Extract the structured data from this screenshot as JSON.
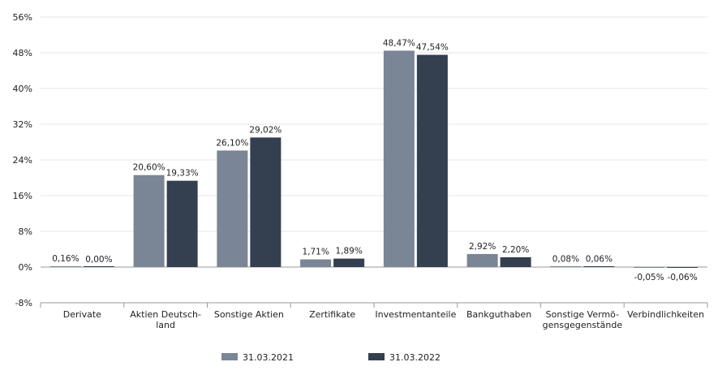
{
  "chart_data": {
    "type": "bar",
    "categories": [
      [
        "Derivate"
      ],
      [
        "Aktien Deutsch-",
        "land"
      ],
      [
        "Sonstige Aktien"
      ],
      [
        "Zertifikate"
      ],
      [
        "Investmentanteile"
      ],
      [
        "Bankguthaben"
      ],
      [
        "Sonstige Vermö-",
        "gensgegenstände"
      ],
      [
        "Verbindlichkeiten"
      ]
    ],
    "series": [
      {
        "name": "31.03.2021",
        "color": "#7a8595",
        "values": [
          0.16,
          20.6,
          26.1,
          1.71,
          48.47,
          2.92,
          0.08,
          -0.05
        ],
        "labels": [
          "0,16%",
          "20,60%",
          "26,10%",
          "1,71%",
          "48,47%",
          "2,92%",
          "0,08%",
          "-0,05%"
        ]
      },
      {
        "name": "31.03.2022",
        "color": "#343f4f",
        "values": [
          0.0,
          19.33,
          29.02,
          1.89,
          47.54,
          2.2,
          0.06,
          -0.06
        ],
        "labels": [
          "0,00%",
          "19,33%",
          "29,02%",
          "1,89%",
          "47,54%",
          "2,20%",
          "0,06%",
          "-0,06%"
        ]
      }
    ],
    "y_ticks": [
      -8,
      0,
      8,
      16,
      24,
      32,
      40,
      48,
      56
    ],
    "y_tick_labels": [
      "-8%",
      "0%",
      "8%",
      "16%",
      "24%",
      "32%",
      "40%",
      "48%",
      "56%"
    ],
    "ylim": [
      -8,
      56
    ],
    "grid": true,
    "legend_position": "bottom-center"
  }
}
